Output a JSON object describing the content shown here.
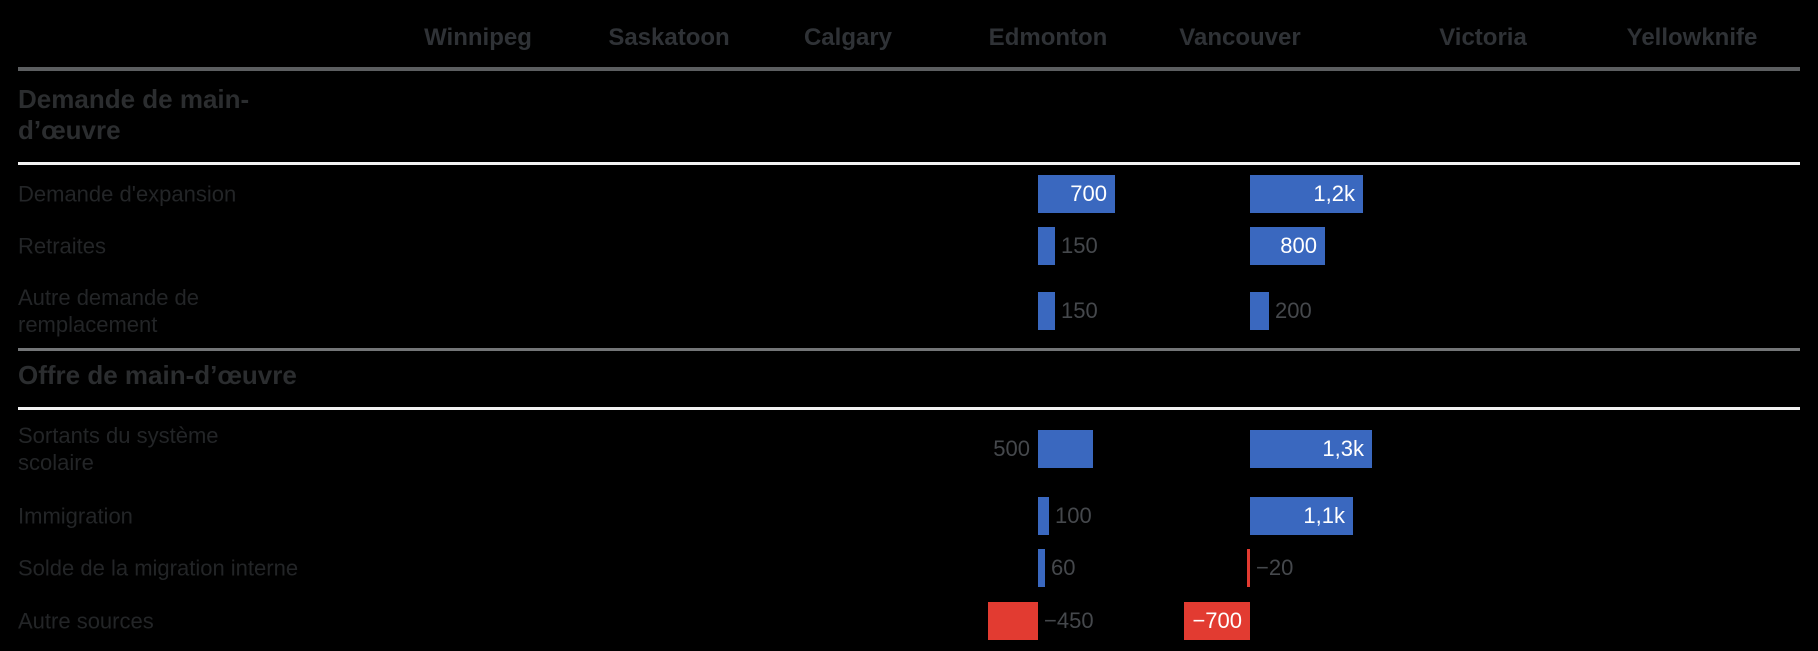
{
  "chart_data": {
    "type": "bar",
    "subtype": "split-bars-table",
    "orientation": "horizontal",
    "legend": "none",
    "grid": "off",
    "columns": [
      "Winnipeg",
      "Saskatoon",
      "Calgary",
      "Edmonton",
      "Vancouver",
      "Victoria",
      "Yellowknife"
    ],
    "bar_colors": {
      "positive": "#3a68bf",
      "negative": "#e23b31"
    },
    "text_colors": {
      "column_header": "#2f3236",
      "section_title": "#2b2d2f",
      "row_label": "#232527",
      "value_outside": "#45484c",
      "value_inside": "#ffffff"
    },
    "sections": [
      {
        "title": "Demande de main-d’œuvre",
        "rows": [
          {
            "label": "Demande d'expansion",
            "cells": [
              {
                "city": "Edmonton",
                "v": 700,
                "t": "700",
                "pos": "inside"
              },
              {
                "city": "Vancouver",
                "v": 1200,
                "t": "1,2k",
                "pos": "inside"
              }
            ]
          },
          {
            "label": "Retraites",
            "cells": [
              {
                "city": "Edmonton",
                "v": 150,
                "t": "150",
                "pos": "right"
              },
              {
                "city": "Vancouver",
                "v": 800,
                "t": "800",
                "pos": "inside"
              }
            ]
          },
          {
            "label": "Autre demande de remplacement",
            "cells": [
              {
                "city": "Edmonton",
                "v": 150,
                "t": "150",
                "pos": "right"
              },
              {
                "city": "Vancouver",
                "v": 200,
                "t": "200",
                "pos": "right"
              }
            ]
          }
        ]
      },
      {
        "title": "Offre de main-d’œuvre",
        "rows": [
          {
            "label": "Sortants du système scolaire",
            "cells": [
              {
                "city": "Edmonton",
                "v": 500,
                "t": "500",
                "pos": "left"
              },
              {
                "city": "Vancouver",
                "v": 1300,
                "t": "1,3k",
                "pos": "inside"
              }
            ]
          },
          {
            "label": "Immigration",
            "cells": [
              {
                "city": "Edmonton",
                "v": 100,
                "t": "100",
                "pos": "right"
              },
              {
                "city": "Vancouver",
                "v": 1100,
                "t": "1,1k",
                "pos": "inside"
              }
            ]
          },
          {
            "label": "Solde de la migration interne",
            "cells": [
              {
                "city": "Edmonton",
                "v": 60,
                "t": "60",
                "pos": "right"
              },
              {
                "city": "Vancouver",
                "v": -20,
                "t": "−20",
                "pos": "right"
              }
            ]
          },
          {
            "label": "Autre sources",
            "cells": [
              {
                "city": "Edmonton",
                "v": -450,
                "t": "−450",
                "pos": "right"
              },
              {
                "city": "Vancouver",
                "v": -700,
                "t": "−700",
                "pos": "inside"
              }
            ]
          }
        ]
      }
    ]
  }
}
